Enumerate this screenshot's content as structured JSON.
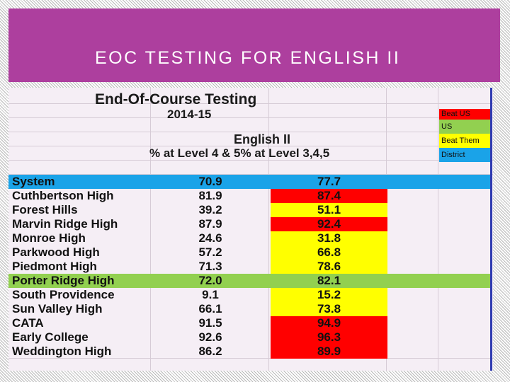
{
  "slide": {
    "title": "EOC TESTING FOR ENGLISH II"
  },
  "sheet": {
    "heading": "End-Of-Course Testing",
    "year": "2014-15",
    "subject": "English II",
    "metric": "% at Level 4 & 5% at Level 3,4,5"
  },
  "legend": [
    {
      "label": "Beat US",
      "color": "#ff0000"
    },
    {
      "label": "US",
      "color": "#92d050"
    },
    {
      "label": "Beat Them",
      "color": "#ffff00"
    },
    {
      "label": "District",
      "color": "#1aa3e8"
    }
  ],
  "rows": [
    {
      "name": "System",
      "v1": "70.9",
      "v2": "77.7",
      "row_color": "#1aa3e8",
      "v2_color": ""
    },
    {
      "name": "Cuthbertson High",
      "v1": "81.9",
      "v2": "87.4",
      "row_color": "",
      "v2_color": "#ff0000"
    },
    {
      "name": "Forest Hills",
      "v1": "39.2",
      "v2": "51.1",
      "row_color": "",
      "v2_color": "#ffff00"
    },
    {
      "name": "Marvin Ridge High",
      "v1": "87.9",
      "v2": "92.4",
      "row_color": "",
      "v2_color": "#ff0000"
    },
    {
      "name": "Monroe High",
      "v1": "24.6",
      "v2": "31.8",
      "row_color": "",
      "v2_color": "#ffff00"
    },
    {
      "name": "Parkwood High",
      "v1": "57.2",
      "v2": "66.8",
      "row_color": "",
      "v2_color": "#ffff00"
    },
    {
      "name": "Piedmont High",
      "v1": "71.3",
      "v2": "78.6",
      "row_color": "",
      "v2_color": "#ffff00"
    },
    {
      "name": "Porter Ridge High",
      "v1": "72.0",
      "v2": "82.1",
      "row_color": "#92d050",
      "v2_color": ""
    },
    {
      "name": "South Providence",
      "v1": "9.1",
      "v2": "15.2",
      "row_color": "",
      "v2_color": "#ffff00"
    },
    {
      "name": "Sun Valley High",
      "v1": "66.1",
      "v2": "73.8",
      "row_color": "",
      "v2_color": "#ffff00"
    },
    {
      "name": "CATA",
      "v1": "91.5",
      "v2": "94.9",
      "row_color": "",
      "v2_color": "#ff0000"
    },
    {
      "name": "Early College",
      "v1": "92.6",
      "v2": "96.3",
      "row_color": "",
      "v2_color": "#ff0000"
    },
    {
      "name": "Weddington High",
      "v1": "86.2",
      "v2": "89.9",
      "row_color": "",
      "v2_color": "#ff0000"
    }
  ]
}
